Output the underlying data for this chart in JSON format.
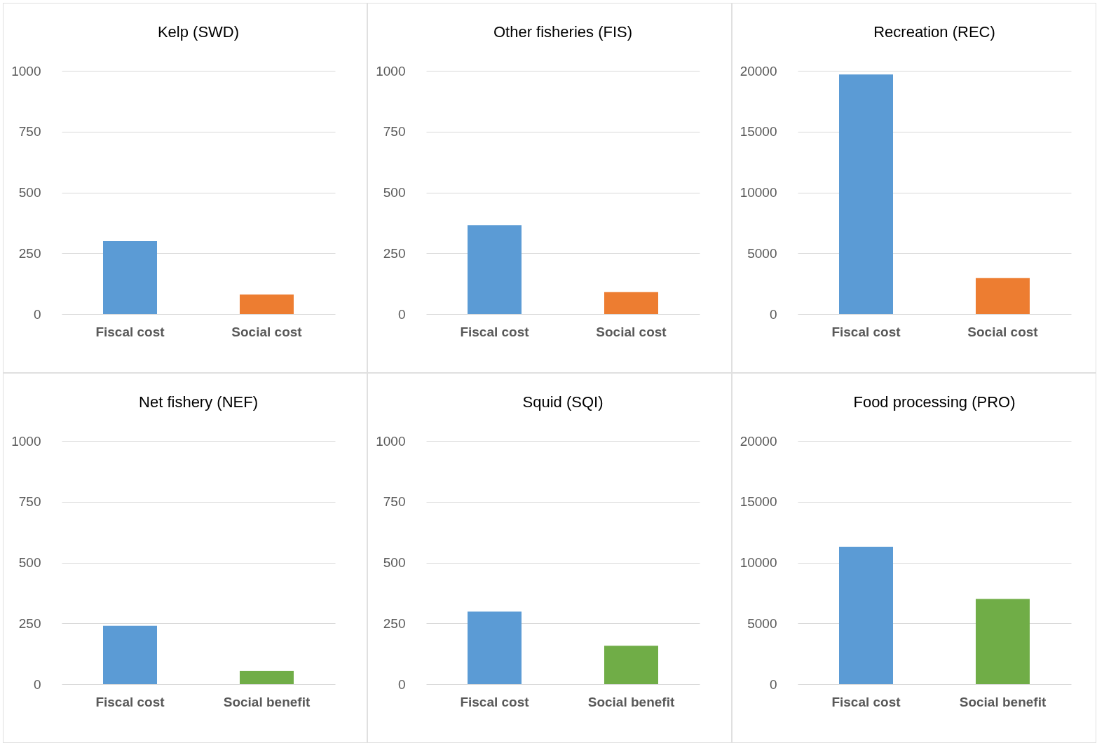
{
  "chart_data": [
    {
      "type": "bar",
      "title": "Kelp (SWD)",
      "categories": [
        "Fiscal cost",
        "Social cost"
      ],
      "values": [
        300,
        80
      ],
      "colors": [
        "#5b9bd5",
        "#ed7d31"
      ],
      "ylim": [
        0,
        1000
      ],
      "yticks": [
        0,
        250,
        500,
        750,
        1000
      ],
      "grid": "y"
    },
    {
      "type": "bar",
      "title": "Other fisheries (FIS)",
      "categories": [
        "Fiscal cost",
        "Social cost"
      ],
      "values": [
        365,
        90
      ],
      "colors": [
        "#5b9bd5",
        "#ed7d31"
      ],
      "ylim": [
        0,
        1000
      ],
      "yticks": [
        0,
        250,
        500,
        750,
        1000
      ],
      "grid": "y"
    },
    {
      "type": "bar",
      "title": "Recreation (REC)",
      "categories": [
        "Fiscal cost",
        "Social cost"
      ],
      "values": [
        19700,
        2950
      ],
      "colors": [
        "#5b9bd5",
        "#ed7d31"
      ],
      "ylim": [
        0,
        20000
      ],
      "yticks": [
        0,
        5000,
        10000,
        15000,
        20000
      ],
      "grid": "y"
    },
    {
      "type": "bar",
      "title": "Net fishery (NEF)",
      "categories": [
        "Fiscal cost",
        "Social benefit"
      ],
      "values": [
        240,
        55
      ],
      "colors": [
        "#5b9bd5",
        "#70ad47"
      ],
      "ylim": [
        0,
        1000
      ],
      "yticks": [
        0,
        250,
        500,
        750,
        1000
      ],
      "grid": "y"
    },
    {
      "type": "bar",
      "title": "Squid (SQI)",
      "categories": [
        "Fiscal cost",
        "Social benefit"
      ],
      "values": [
        298,
        158
      ],
      "colors": [
        "#5b9bd5",
        "#70ad47"
      ],
      "ylim": [
        0,
        1000
      ],
      "yticks": [
        0,
        250,
        500,
        750,
        1000
      ],
      "grid": "y"
    },
    {
      "type": "bar",
      "title": "Food processing (PRO)",
      "categories": [
        "Fiscal cost",
        "Social benefit"
      ],
      "values": [
        11300,
        7000
      ],
      "colors": [
        "#5b9bd5",
        "#70ad47"
      ],
      "ylim": [
        0,
        20000
      ],
      "yticks": [
        0,
        5000,
        10000,
        15000,
        20000
      ],
      "grid": "y"
    }
  ]
}
